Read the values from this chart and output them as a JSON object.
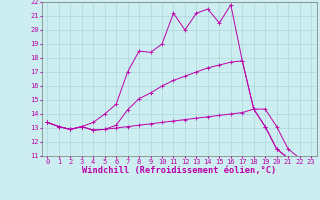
{
  "xlabel": "Windchill (Refroidissement éolien,°C)",
  "background_color": "#cceef0",
  "grid_color": "#aad8dc",
  "line_color": "#bb00aa",
  "xlim": [
    -0.5,
    23.5
  ],
  "ylim": [
    11,
    22
  ],
  "xticks": [
    0,
    1,
    2,
    3,
    4,
    5,
    6,
    7,
    8,
    9,
    10,
    11,
    12,
    13,
    14,
    15,
    16,
    17,
    18,
    19,
    20,
    21,
    22,
    23
  ],
  "yticks": [
    11,
    12,
    13,
    14,
    15,
    16,
    17,
    18,
    19,
    20,
    21,
    22
  ],
  "line1_x": [
    0,
    1,
    2,
    3,
    4,
    5,
    6,
    7,
    8,
    9,
    10,
    11,
    12,
    13,
    14,
    15,
    16,
    17,
    18,
    19,
    20,
    21,
    22,
    23
  ],
  "line1_y": [
    13.4,
    13.1,
    12.9,
    13.1,
    12.85,
    12.9,
    13.0,
    13.1,
    13.2,
    13.3,
    13.4,
    13.5,
    13.6,
    13.7,
    13.8,
    13.9,
    14.0,
    14.1,
    14.35,
    14.35,
    13.1,
    11.5,
    10.85,
    10.8
  ],
  "line2_x": [
    0,
    1,
    2,
    3,
    4,
    5,
    6,
    7,
    8,
    9,
    10,
    11,
    12,
    13,
    14,
    15,
    16,
    17,
    18,
    19,
    20,
    21,
    22,
    23
  ],
  "line2_y": [
    13.4,
    13.1,
    12.9,
    13.1,
    13.4,
    14.0,
    14.7,
    17.0,
    18.5,
    18.4,
    19.0,
    21.2,
    20.0,
    21.2,
    21.5,
    20.5,
    21.8,
    17.8,
    14.35,
    13.1,
    11.5,
    10.85,
    10.8,
    10.8
  ],
  "line3_x": [
    0,
    1,
    2,
    3,
    4,
    5,
    6,
    7,
    8,
    9,
    10,
    11,
    12,
    13,
    14,
    15,
    16,
    17,
    18,
    19,
    20,
    21,
    22,
    23
  ],
  "line3_y": [
    13.4,
    13.1,
    12.9,
    13.1,
    12.85,
    12.9,
    13.2,
    14.3,
    15.1,
    15.5,
    16.0,
    16.4,
    16.7,
    17.0,
    17.3,
    17.5,
    17.7,
    17.8,
    14.35,
    13.1,
    11.5,
    10.85,
    10.8,
    10.8
  ],
  "tick_fontsize": 5.0,
  "label_fontsize": 6.2
}
